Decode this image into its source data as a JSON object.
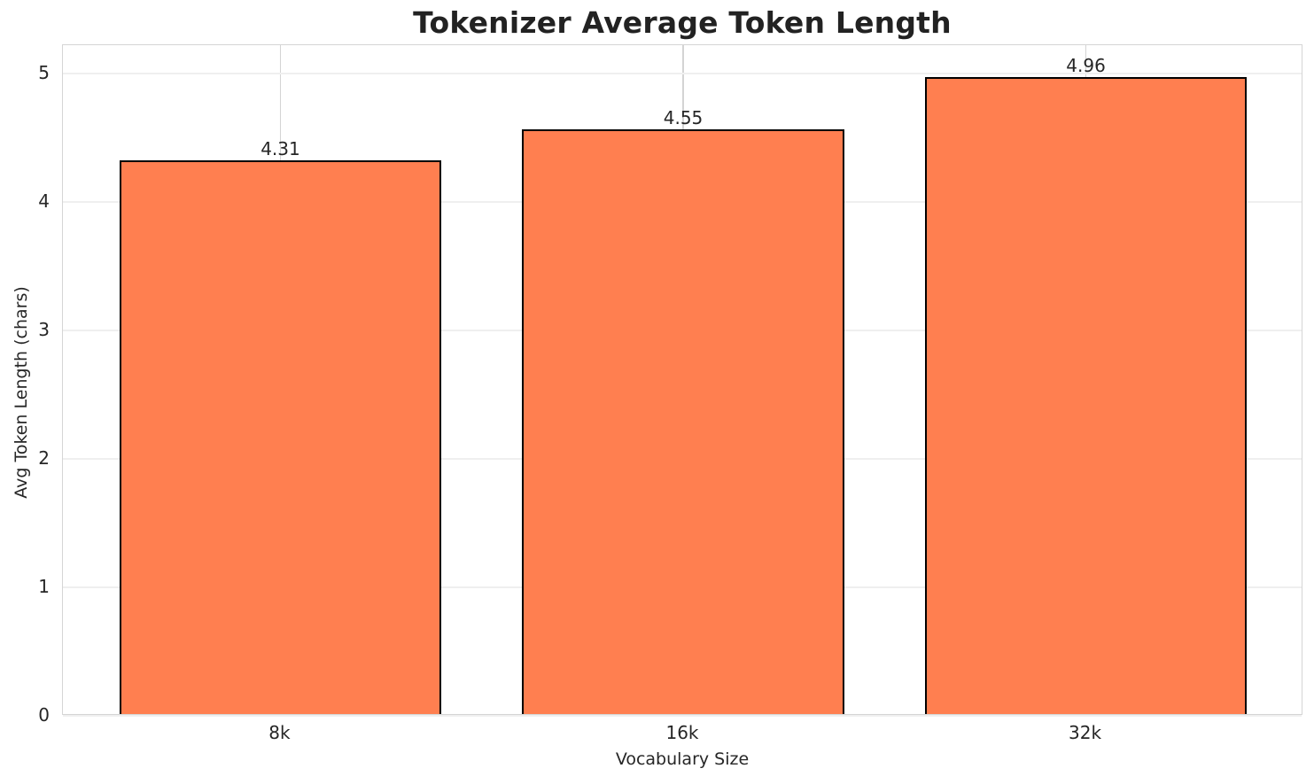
{
  "chart_data": {
    "type": "bar",
    "title": "Tokenizer Average Token Length",
    "xlabel": "Vocabulary Size",
    "ylabel": "Avg Token Length (chars)",
    "categories": [
      "8k",
      "16k",
      "32k"
    ],
    "values": [
      4.31,
      4.55,
      4.96
    ],
    "value_labels": [
      "4.31",
      "4.55",
      "4.96"
    ],
    "yticks": [
      0,
      1,
      2,
      3,
      4,
      5
    ],
    "ytick_labels": [
      "0",
      "1",
      "2",
      "3",
      "4",
      "5"
    ],
    "ylim": [
      0,
      5.22
    ],
    "grid": "horizontal faint lines at integer ticks, vertical lines at category centers",
    "legend": "none",
    "colors": {
      "bar_fill": "#FF7F50",
      "bar_edge": "#000000",
      "grid_horizontal": "#efefef",
      "grid_vertical": "#d4d4d4",
      "plot_border": "#d5d5d5",
      "text": "#262626",
      "background": "#ffffff"
    }
  }
}
